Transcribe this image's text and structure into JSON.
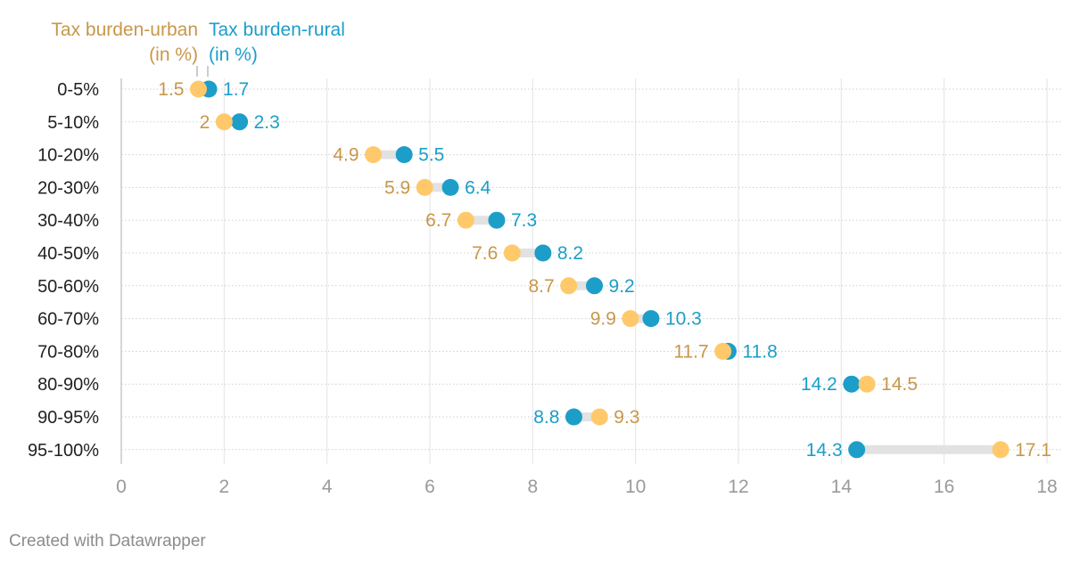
{
  "chart_data": {
    "type": "dot-range",
    "legend": {
      "urban": {
        "line1": "Tax burden-urban",
        "line2": "(in %)"
      },
      "rural": {
        "line1": "Tax burden-rural",
        "line2": "(in %)"
      }
    },
    "categories": [
      "0-5%",
      "5-10%",
      "10-20%",
      "20-30%",
      "30-40%",
      "40-50%",
      "50-60%",
      "60-70%",
      "70-80%",
      "80-90%",
      "90-95%",
      "95-100%"
    ],
    "series": [
      {
        "name": "Tax burden-urban (in %)",
        "values": [
          1.5,
          2,
          4.9,
          5.9,
          6.7,
          7.6,
          8.7,
          9.9,
          11.7,
          14.5,
          9.3,
          17.1
        ]
      },
      {
        "name": "Tax burden-rural (in %)",
        "values": [
          1.7,
          2.3,
          5.5,
          6.4,
          7.3,
          8.2,
          9.2,
          10.3,
          11.8,
          14.2,
          8.8,
          14.3
        ]
      }
    ],
    "xlim": [
      0,
      18
    ],
    "xticks": [
      0,
      2,
      4,
      6,
      8,
      10,
      12,
      14,
      16,
      18
    ],
    "colors": {
      "urban": "#ffc96b",
      "urban_label": "#c8974a",
      "rural": "#1c9ec9",
      "rural_label": "#1c9ec9",
      "range": "#e2e2e2"
    }
  },
  "footer": "Created with Datawrapper"
}
